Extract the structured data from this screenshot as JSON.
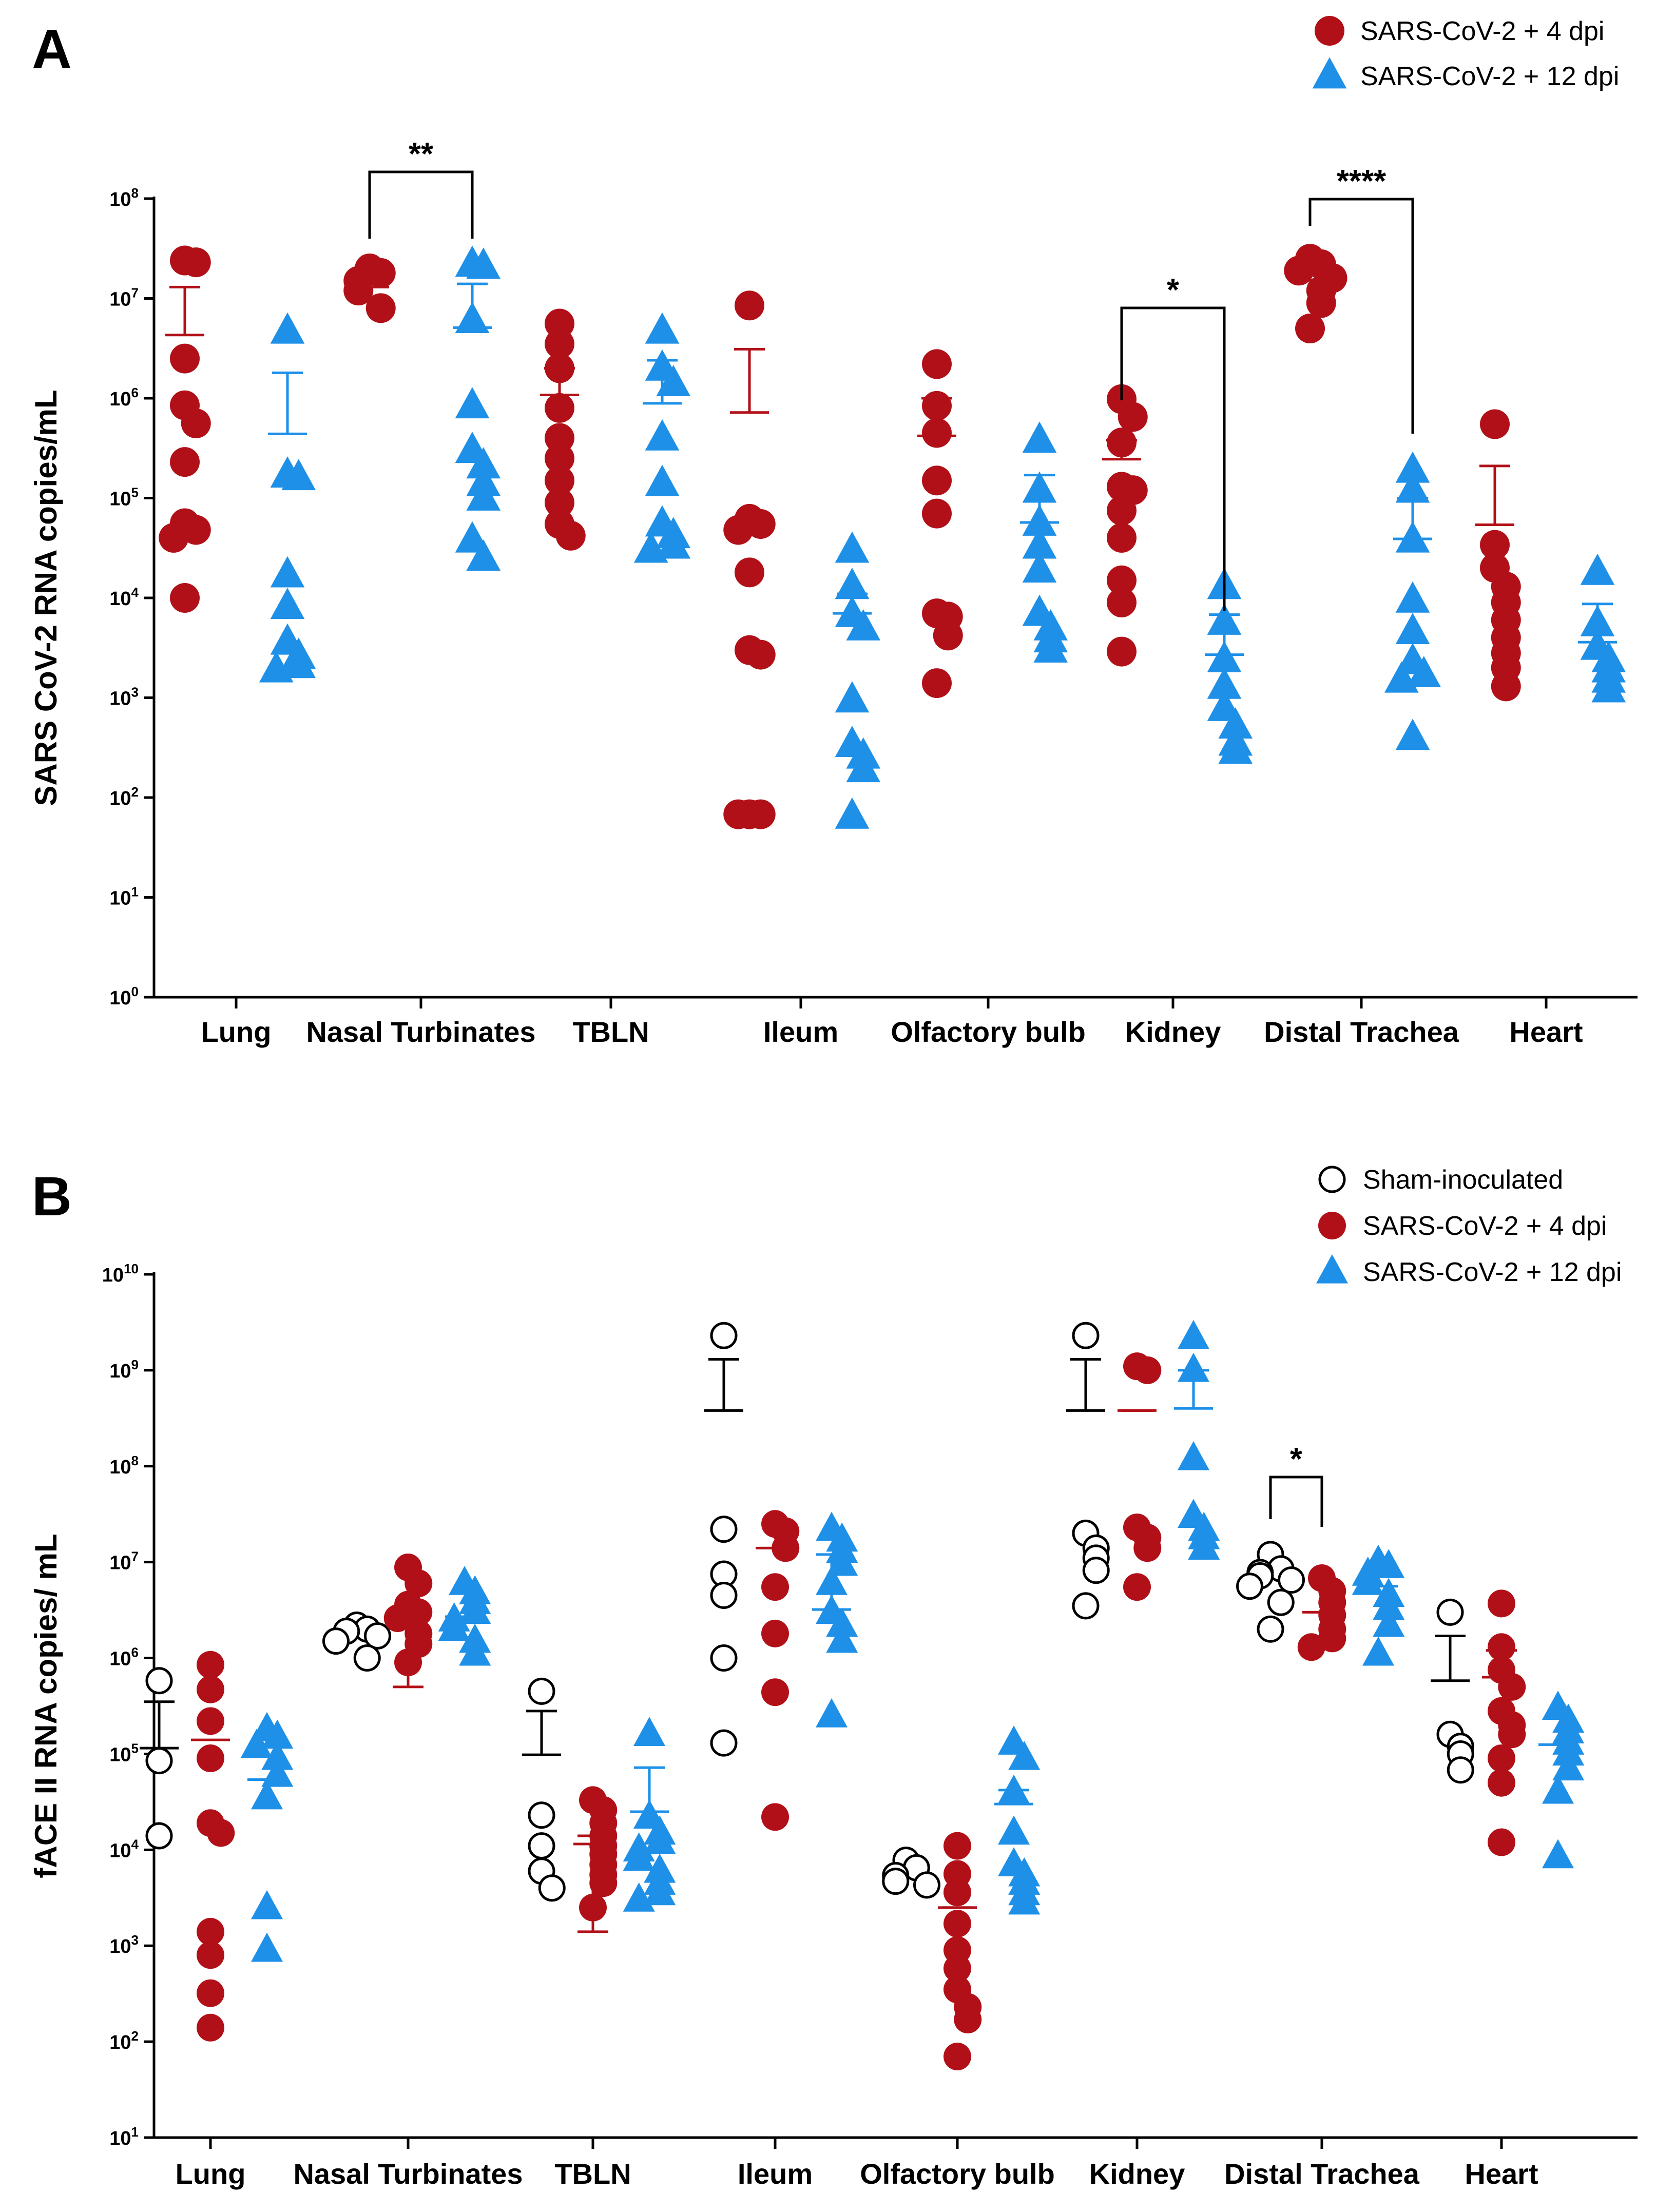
{
  "colors": {
    "red": "#B21018",
    "blue": "#1E90E8",
    "black": "#000000",
    "sham_edge": "#000000"
  },
  "legends": {
    "A": [
      "SARS-CoV-2 + 4 dpi",
      "SARS-CoV-2 + 12 dpi"
    ],
    "B": [
      "Sham-inoculated",
      "SARS-CoV-2 + 4 dpi",
      "SARS-CoV-2 + 12 dpi"
    ]
  },
  "chart_data": [
    {
      "panel": "A",
      "type": "scatter",
      "ylabel": "SARS CoV-2 RNA copies/mL",
      "yscale": "log",
      "ylim_exp": [
        0,
        8
      ],
      "categories": [
        "Lung",
        "Nasal Turbinates",
        "TBLN",
        "Ileum",
        "Olfactory bulb",
        "Kidney",
        "Distal Trachea",
        "Heart"
      ],
      "series": [
        {
          "name": "SARS-CoV-2 + 4 dpi",
          "marker": "circle",
          "values": [
            [
              24000000,
              23000000,
              2500000,
              850000,
              560000,
              230000,
              56000,
              48000,
              40000,
              10000
            ],
            [
              20000000,
              18000000,
              15000000,
              12000000,
              8000000
            ],
            [
              5600000,
              3500000,
              2000000,
              800000,
              400000,
              250000,
              150000,
              90000,
              55000,
              42000
            ],
            [
              8500000,
              62000,
              55000,
              48000,
              18000,
              3000,
              2700,
              68,
              68,
              68
            ],
            [
              2200000,
              840000,
              450000,
              150000,
              70000,
              7000,
              6500,
              4200,
              1400
            ],
            [
              980000,
              650000,
              360000,
              130000,
              120000,
              75000,
              40000,
              15000,
              9000,
              2900
            ],
            [
              25000000,
              22000000,
              19000000,
              16000000,
              12000000,
              9000000,
              5000000
            ],
            [
              550000,
              34000,
              20000,
              13000,
              9000,
              6000,
              4000,
              2800,
              2000,
              1300
            ]
          ],
          "mean": [
            4300000,
            13000000,
            1080000,
            720000,
            420000,
            245000,
            15200000,
            54000
          ],
          "sem_upper": [
            13000000,
            18000000,
            2000000,
            3100000,
            1000000,
            380000,
            19000000,
            210000
          ]
        },
        {
          "name": "SARS-CoV-2 + 12 dpi",
          "marker": "triangle",
          "values": [
            [
              4700000,
              170000,
              160000,
              17000,
              8200,
              3600,
              2600,
              2100,
              1900
            ],
            [
              22000000,
              21000000,
              6000000,
              840000,
              300000,
              210000,
              140000,
              100000,
              38000,
              25000
            ],
            [
              4700000,
              2000000,
              1400000,
              400000,
              140000,
              55000,
              42000,
              33000,
              30000
            ],
            [
              30000,
              13000,
              6800,
              5000,
              950,
              340,
              260,
              190,
              65
            ],
            [
              380000,
              120000,
              56000,
              33000,
              19000,
              7000,
              5000,
              3800,
              3000
            ],
            [
              13000,
              5700,
              2400,
              1300,
              780,
              520,
              350,
              290
            ],
            [
              190000,
              120000,
              38000,
              9500,
              4600,
              2300,
              1700,
              1500,
              400
            ],
            [
              18000,
              5500,
              3200,
              2400,
              1900,
              1500,
              1200
            ]
          ],
          "mean": [
            440000,
            5100000,
            890000,
            7000,
            57000,
            2700,
            39000,
            3600
          ],
          "sem_upper": [
            1800000,
            14000000,
            2400000,
            11000,
            170000,
            6800,
            100000,
            8700
          ]
        }
      ],
      "significance": [
        {
          "category": "Nasal Turbinates",
          "label": "**"
        },
        {
          "category": "Kidney",
          "label": "*"
        },
        {
          "category": "Distal Trachea",
          "label": "****"
        }
      ]
    },
    {
      "panel": "B",
      "type": "scatter",
      "ylabel": "fACE II RNA copies/ mL",
      "yscale": "log",
      "ylim_exp": [
        1,
        10
      ],
      "categories": [
        "Lung",
        "Nasal Turbinates",
        "TBLN",
        "Ileum",
        "Olfactory bulb",
        "Kidney",
        "Distal Trachea",
        "Heart"
      ],
      "series": [
        {
          "name": "Sham-inoculated",
          "marker": "open-circle",
          "values": [
            [
              580000,
              85000,
              14000
            ],
            [
              2200000,
              2000000,
              1900000,
              1700000,
              1500000,
              1000000
            ],
            [
              450000,
              23000,
              11000,
              6000,
              4000
            ],
            [
              2300000000,
              22000000,
              7500000,
              4500000,
              1000000,
              130000
            ],
            [
              7800,
              6500,
              5400,
              4700,
              4300
            ],
            [
              2300000000,
              20000000,
              14000000,
              11000000,
              8200000,
              3500000
            ],
            [
              12000000,
              8500000,
              7800000,
              7200000,
              6500000,
              5600000,
              3800000,
              2000000
            ],
            [
              3000000,
              160000,
              120000,
              100000,
              68000
            ]
          ],
          "mean": [
            115000,
            1800000,
            98000,
            380000000,
            5700,
            380000000,
            7600000,
            580000
          ],
          "sem_upper": [
            350000,
            2000000,
            280000,
            1300000000,
            6400,
            1300000000,
            9000000,
            1700000
          ]
        },
        {
          "name": "SARS-CoV-2 + 4 dpi",
          "marker": "circle",
          "values": [
            [
              850000,
              470000,
              220000,
              90000,
              19000,
              15000,
              1400,
              800,
              320,
              140
            ],
            [
              8800000,
              6000000,
              3600000,
              3000000,
              2600000,
              1800000,
              1400000,
              900000
            ],
            [
              33000,
              26000,
              19000,
              14000,
              11000,
              9000,
              7000,
              5500,
              4500,
              2500
            ],
            [
              25000000,
              21000000,
              14000000,
              5500000,
              1800000,
              440000,
              22000
            ],
            [
              11000,
              5600,
              3600,
              1700,
              900,
              580,
              350,
              230,
              170,
              70
            ],
            [
              1100000000,
              1000000000,
              23000000,
              18000000,
              14000000,
              5500000
            ],
            [
              6800000,
              5000000,
              3800000,
              2800000,
              2000000,
              1600000,
              1300000
            ],
            [
              3700000,
              1300000,
              750000,
              500000,
              280000,
              200000,
              160000,
              90000,
              50000,
              12000
            ]
          ],
          "mean": [
            140000,
            3000000,
            11500,
            14000000,
            2500,
            380000000,
            3000000,
            630000
          ],
          "sem_upper": [
            0,
            3100000,
            14000,
            14000000,
            2500,
            380000000,
            3000000,
            1200000
          ],
          "sem_lower": [
            0,
            500000,
            1400,
            0,
            0,
            0,
            0,
            0
          ]
        },
        {
          "name": "SARS-CoV-2 + 12 dpi",
          "marker": "triangle",
          "values": [
            [
              180000,
              150000,
              120000,
              90000,
              60000,
              35000,
              2500,
              900
            ],
            [
              6000000,
              4800000,
              3800000,
              3000000,
              2500000,
              2000000,
              1500000,
              1100000
            ],
            [
              160000,
              22000,
              15000,
              12000,
              10000,
              8000,
              6000,
              4500,
              3500,
              3000
            ],
            [
              22000000,
              17000000,
              13000000,
              9500000,
              6000000,
              3000000,
              2200000,
              1500000,
              250000
            ],
            [
              130000,
              90000,
              40000,
              15000,
              7000,
              5500,
              4500,
              3500,
              2800
            ],
            [
              2200000000,
              1000000000,
              120000000,
              30000000,
              22000000,
              18000000,
              14000000
            ],
            [
              10000000,
              9000000,
              7500000,
              6000000,
              4500000,
              3300000,
              2200000,
              1100000
            ],
            [
              300000,
              220000,
              170000,
              130000,
              100000,
              70000,
              40000,
              8500
            ]
          ],
          "mean": [
            54000,
            2700000,
            25000,
            3200000,
            30000,
            400000000,
            5600000,
            125000
          ],
          "sem_upper": [
            0,
            0,
            72000,
            12000000,
            42000,
            1000000000,
            0,
            0
          ]
        }
      ],
      "significance": [
        {
          "category": "Distal Trachea",
          "label": "*"
        }
      ]
    }
  ],
  "panels": {
    "A": {
      "label": "A"
    },
    "B": {
      "label": "B"
    }
  }
}
